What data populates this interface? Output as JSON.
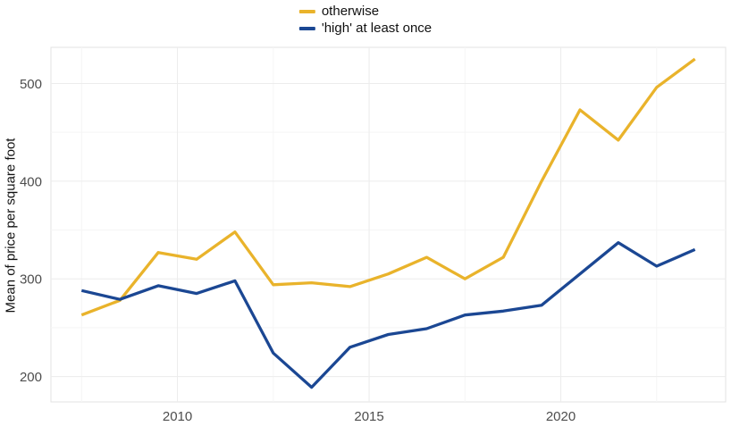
{
  "legend": {
    "items": [
      {
        "label": "otherwise",
        "color": "#E9B32B"
      },
      {
        "label": "'high' at least once",
        "color": "#1B4793"
      }
    ]
  },
  "chart_data": {
    "type": "line",
    "title": "",
    "xlabel": "",
    "ylabel": "Mean of price per square foot",
    "x": [
      2007.5,
      2008.5,
      2009.5,
      2010.5,
      2011.5,
      2012.5,
      2013.5,
      2014.5,
      2015.5,
      2016.5,
      2017.5,
      2018.5,
      2019.5,
      2020.5,
      2021.5,
      2022.5,
      2023.5
    ],
    "series": [
      {
        "name": "otherwise",
        "color": "#E9B32B",
        "values": [
          263,
          278,
          327,
          320,
          348,
          294,
          296,
          292,
          305,
          322,
          300,
          322,
          400,
          473,
          442,
          496,
          525
        ]
      },
      {
        "name": "'high' at least once",
        "color": "#1B4793",
        "values": [
          288,
          279,
          293,
          285,
          298,
          224,
          189,
          230,
          243,
          249,
          263,
          267,
          273,
          305,
          337,
          313,
          330
        ]
      }
    ],
    "x_ticks": [
      2010,
      2015,
      2020
    ],
    "x_minor_gridlines": [
      2007.5,
      2012.5,
      2017.5,
      2022.5
    ],
    "y_ticks": [
      200,
      300,
      400,
      500
    ],
    "y_minor_gridlines": [
      250,
      350,
      450
    ],
    "xlim": [
      2006.7,
      2024.3
    ],
    "ylim": [
      174,
      537
    ],
    "grid": true,
    "legend_position": "top-center",
    "colors": {
      "panel_border": "#e3e3e3",
      "grid_major": "#ececec",
      "grid_minor": "#f5f5f5",
      "tick_text": "#4d4d4d",
      "axis_title_text": "#111111"
    }
  }
}
